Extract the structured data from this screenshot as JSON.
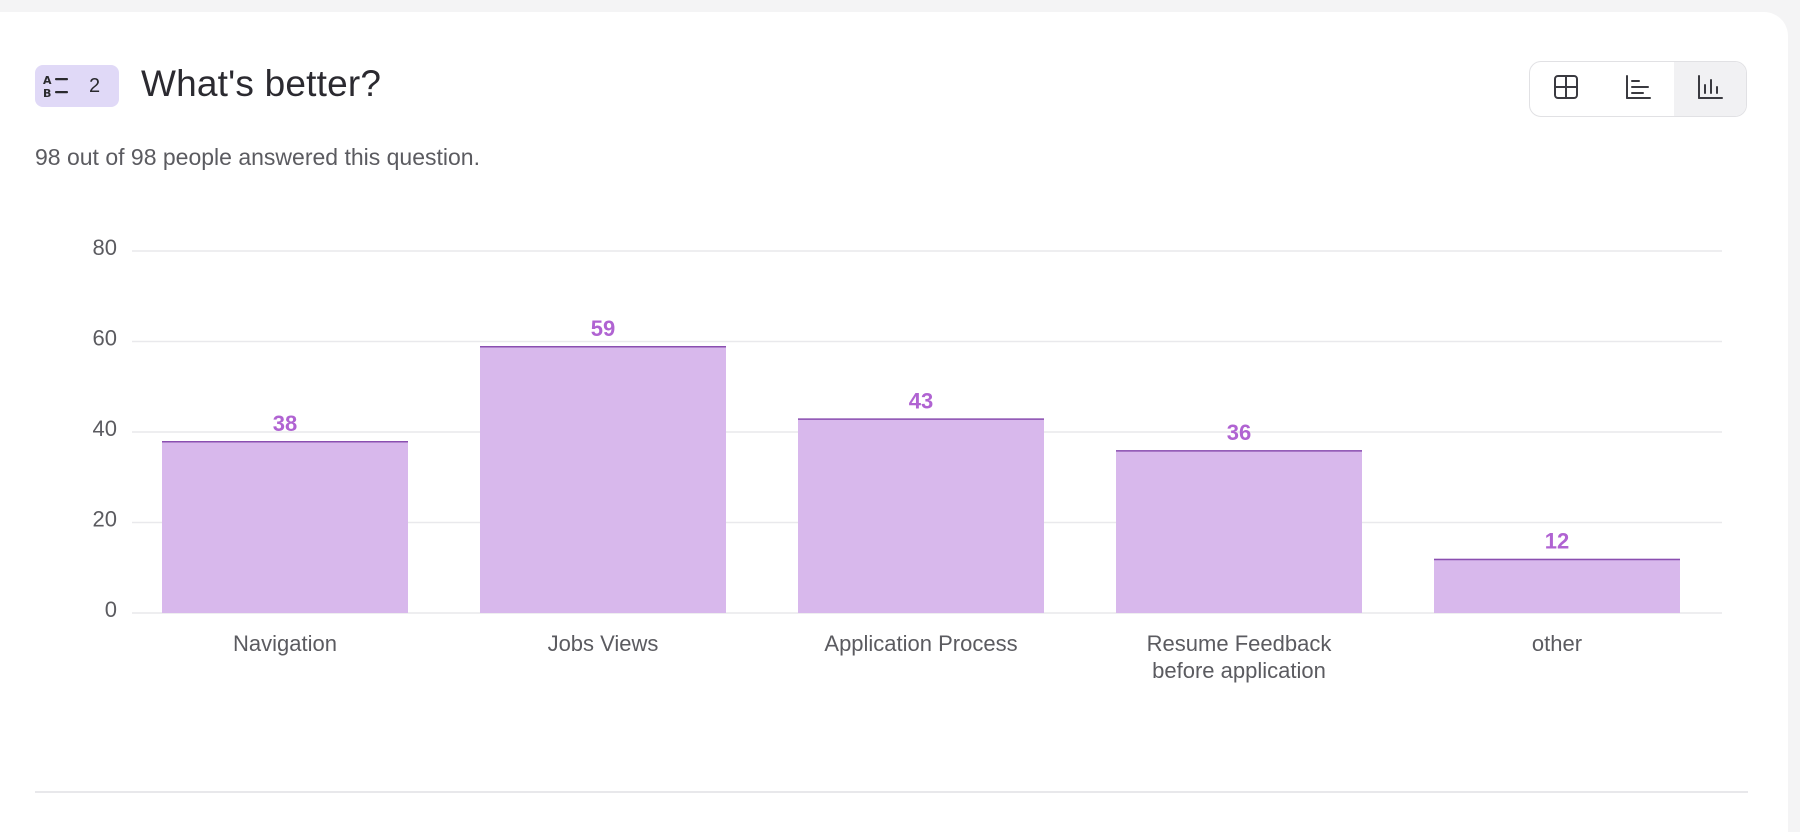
{
  "question": {
    "number": "2",
    "title": "What's better?",
    "answered_text": "98 out of 98 people answered this question.",
    "type_icon": "ranking-list-icon"
  },
  "view_toggle": {
    "buttons": [
      {
        "name": "table-view",
        "icon": "grid-icon",
        "active": false
      },
      {
        "name": "horizontal-bar-view",
        "icon": "horizontal-bar-chart-icon",
        "active": false
      },
      {
        "name": "vertical-bar-view",
        "icon": "vertical-bar-chart-icon",
        "active": true
      }
    ]
  },
  "colors": {
    "bar_fill": "#d8b8ec",
    "bar_top": "#8a4fb0",
    "value_label": "#b063d2",
    "grid": "#e9e9ec",
    "tick_label": "#5b5b60",
    "badge_bg": "#e0d9f7"
  },
  "chart_data": {
    "type": "bar",
    "categories": [
      "Navigation",
      "Jobs Views",
      "Application Process",
      "Resume Feedback before application",
      "other"
    ],
    "category_lines": [
      [
        "Navigation"
      ],
      [
        "Jobs Views"
      ],
      [
        "Application Process"
      ],
      [
        "Resume Feedback",
        "before application"
      ],
      [
        "other"
      ]
    ],
    "values": [
      38,
      59,
      43,
      36,
      12
    ],
    "ylim": [
      0,
      80
    ],
    "yticks": [
      0,
      20,
      40,
      60,
      80
    ],
    "title": "",
    "xlabel": "",
    "ylabel": "",
    "grid": true,
    "data_labels": true
  }
}
